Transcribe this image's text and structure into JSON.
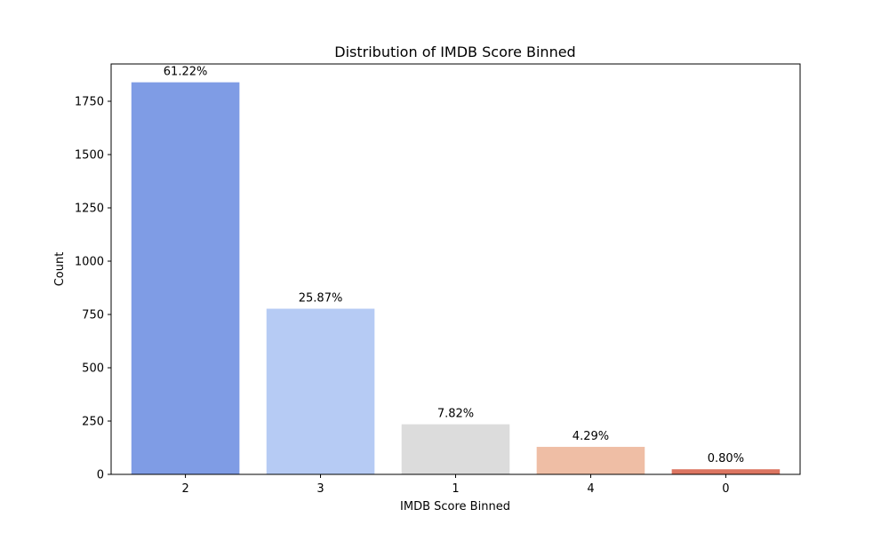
{
  "chart_data": {
    "type": "bar",
    "title": "Distribution of IMDB Score Binned",
    "xlabel": "IMDB Score Binned",
    "ylabel": "Count",
    "categories": [
      "2",
      "3",
      "1",
      "4",
      "0"
    ],
    "values": [
      1839,
      777,
      235,
      129,
      24
    ],
    "data_labels": [
      "61.22%",
      "25.87%",
      "7.82%",
      "4.29%",
      "0.80%"
    ],
    "colors": [
      "#7f9ce5",
      "#b6cbf4",
      "#dcdcdc",
      "#efbea5",
      "#dc7561"
    ],
    "ylim": [
      0,
      1925
    ],
    "yticks": [
      0,
      250,
      500,
      750,
      1000,
      1250,
      1500,
      1750
    ],
    "grid": false,
    "legend": "none"
  }
}
